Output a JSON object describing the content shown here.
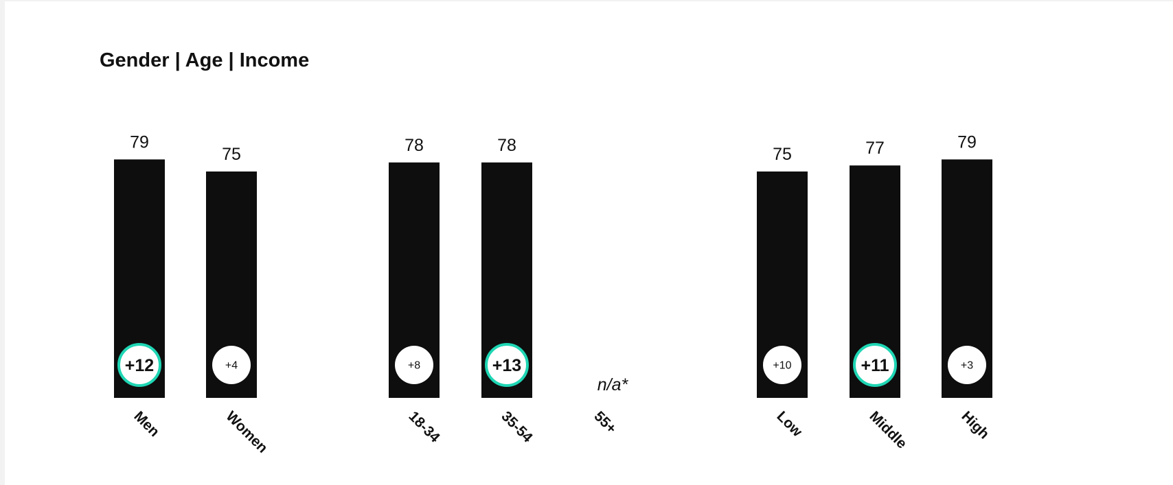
{
  "chart_data": {
    "type": "bar",
    "title": "Gender | Age | Income",
    "categories": [
      "Men",
      "Women",
      "18-34",
      "35-54",
      "55+",
      "Low",
      "Middle",
      "High"
    ],
    "values": [
      79,
      75,
      78,
      78,
      null,
      75,
      77,
      79
    ],
    "value_labels": [
      "79",
      "75",
      "78",
      "78",
      "",
      "75",
      "77",
      "79"
    ],
    "badges": [
      "+12",
      "+4",
      "+8",
      "+13",
      "",
      "+10",
      "+11",
      "+3"
    ],
    "highlighted": [
      true,
      false,
      false,
      true,
      false,
      false,
      true,
      false
    ],
    "missing_label": "n/a*",
    "groups": [
      "Gender",
      "Age",
      "Income"
    ],
    "colors": {
      "bar": "#0e0e0e",
      "badge_fill": "#ffffff",
      "highlight_ring": "#1fd6b4",
      "text": "#111111"
    },
    "grid": false,
    "legend": "none"
  }
}
